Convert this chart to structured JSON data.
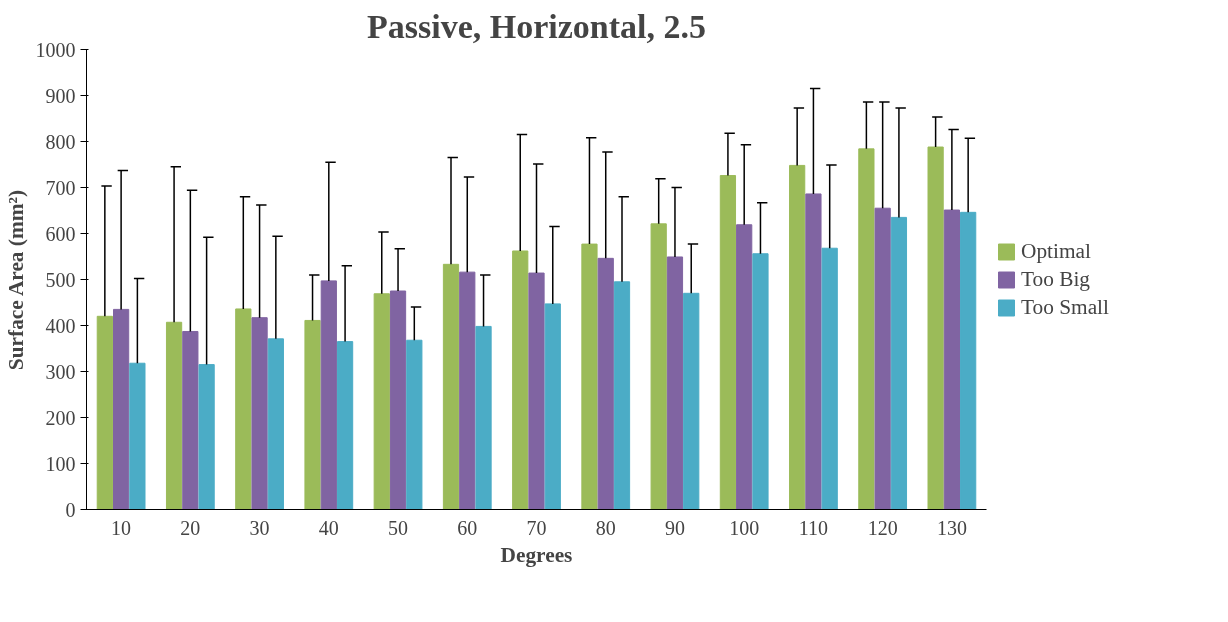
{
  "chart_data": {
    "type": "bar",
    "title": "Passive, Horizontal, 2.5",
    "xlabel": "Degrees",
    "ylabel": "Surface Area (mm²)",
    "categories": [
      "10",
      "20",
      "30",
      "40",
      "50",
      "60",
      "70",
      "80",
      "90",
      "100",
      "110",
      "120",
      "130"
    ],
    "series": [
      {
        "name": "Optimal",
        "color": "#9bbb59",
        "values": [
          420,
          407,
          436,
          411,
          469,
          533,
          562,
          577,
          621,
          726,
          748,
          784,
          788
        ],
        "errors": [
          [
            420,
            703
          ],
          [
            407,
            745
          ],
          [
            436,
            680
          ],
          [
            411,
            510
          ],
          [
            469,
            603
          ],
          [
            533,
            765
          ],
          [
            562,
            815
          ],
          [
            577,
            808
          ],
          [
            621,
            719
          ],
          [
            726,
            818
          ],
          [
            748,
            873
          ],
          [
            784,
            886
          ],
          [
            788,
            853
          ]
        ]
      },
      {
        "name": "Too Big",
        "color": "#8064a2",
        "values": [
          435,
          387,
          417,
          497,
          475,
          516,
          514,
          546,
          549,
          619,
          686,
          655,
          651
        ],
        "errors": [
          [
            435,
            737
          ],
          [
            387,
            694
          ],
          [
            417,
            662
          ],
          [
            497,
            755
          ],
          [
            475,
            567
          ],
          [
            516,
            723
          ],
          [
            514,
            751
          ],
          [
            546,
            777
          ],
          [
            549,
            700
          ],
          [
            619,
            793
          ],
          [
            686,
            915
          ],
          [
            655,
            886
          ],
          [
            651,
            826
          ]
        ]
      },
      {
        "name": "Too Small",
        "color": "#4bacc6",
        "values": [
          318,
          315,
          371,
          365,
          368,
          398,
          447,
          495,
          470,
          556,
          568,
          635,
          646
        ],
        "errors": [
          [
            318,
            502
          ],
          [
            315,
            592
          ],
          [
            371,
            594
          ],
          [
            365,
            530
          ],
          [
            368,
            440
          ],
          [
            398,
            510
          ],
          [
            447,
            615
          ],
          [
            495,
            680
          ],
          [
            470,
            577
          ],
          [
            556,
            667
          ],
          [
            568,
            749
          ],
          [
            635,
            873
          ],
          [
            646,
            807
          ]
        ]
      }
    ],
    "ylim": [
      0,
      1000
    ],
    "yticks": [
      0,
      100,
      200,
      300,
      400,
      500,
      600,
      700,
      800,
      900,
      1000
    ],
    "legend": "right",
    "grid": false
  }
}
